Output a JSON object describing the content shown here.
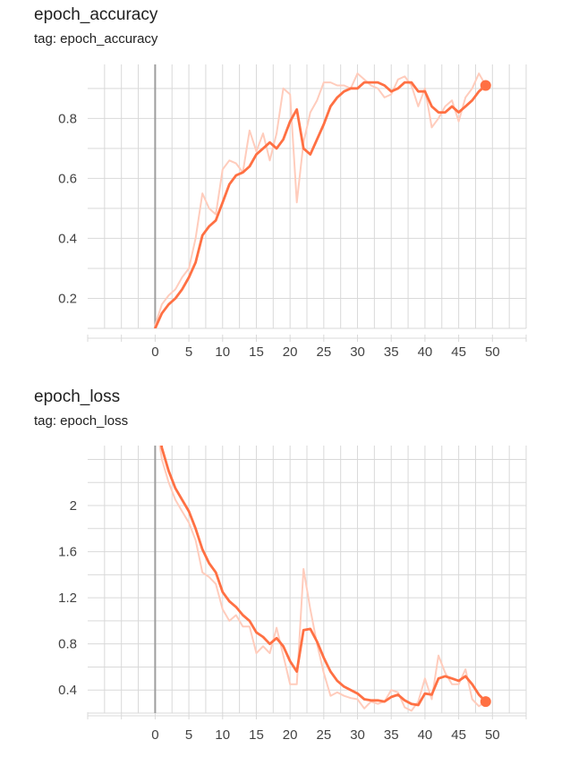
{
  "charts": [
    {
      "title": "epoch_accuracy",
      "tag": "tag: epoch_accuracy"
    },
    {
      "title": "epoch_loss",
      "tag": "tag: epoch_loss"
    }
  ],
  "colors": {
    "smoothed": "#ff7043",
    "raw": "#ffccbc",
    "grid": "#d9d9d9",
    "zero_axis": "#9e9e9e"
  },
  "chart_data": [
    {
      "type": "line",
      "title": "epoch_accuracy",
      "subtitle": "tag: epoch_accuracy",
      "xlabel": "",
      "ylabel": "",
      "xlim": [
        -10,
        55
      ],
      "ylim": [
        0.1,
        0.98
      ],
      "x_ticks": [
        "0",
        "5",
        "10",
        "15",
        "20",
        "25",
        "30",
        "35",
        "40",
        "45",
        "50"
      ],
      "y_ticks": [
        "0.2",
        "0.4",
        "0.6",
        "0.8"
      ],
      "grid": true,
      "series": [
        {
          "role": "raw",
          "x": [
            0,
            1,
            2,
            3,
            4,
            5,
            6,
            7,
            8,
            9,
            10,
            11,
            12,
            13,
            14,
            15,
            16,
            17,
            18,
            19,
            20,
            21,
            22,
            23,
            24,
            25,
            26,
            27,
            28,
            29,
            30,
            31,
            32,
            33,
            34,
            35,
            36,
            37,
            38,
            39,
            40,
            41,
            42,
            43,
            44,
            45,
            46,
            47,
            48,
            49
          ],
          "y": [
            0.11,
            0.18,
            0.21,
            0.23,
            0.27,
            0.3,
            0.4,
            0.55,
            0.5,
            0.48,
            0.63,
            0.66,
            0.65,
            0.62,
            0.76,
            0.69,
            0.75,
            0.66,
            0.75,
            0.9,
            0.88,
            0.52,
            0.72,
            0.82,
            0.86,
            0.92,
            0.92,
            0.91,
            0.91,
            0.9,
            0.95,
            0.93,
            0.91,
            0.9,
            0.87,
            0.88,
            0.93,
            0.94,
            0.91,
            0.84,
            0.9,
            0.77,
            0.8,
            0.84,
            0.86,
            0.79,
            0.87,
            0.9,
            0.95,
            0.91
          ]
        },
        {
          "role": "smoothed",
          "x": [
            0,
            1,
            2,
            3,
            4,
            5,
            6,
            7,
            8,
            9,
            10,
            11,
            12,
            13,
            14,
            15,
            16,
            17,
            18,
            19,
            20,
            21,
            22,
            23,
            24,
            25,
            26,
            27,
            28,
            29,
            30,
            31,
            32,
            33,
            34,
            35,
            36,
            37,
            38,
            39,
            40,
            41,
            42,
            43,
            44,
            45,
            46,
            47,
            48,
            49
          ],
          "y": [
            0.1,
            0.15,
            0.18,
            0.2,
            0.23,
            0.27,
            0.32,
            0.41,
            0.44,
            0.46,
            0.52,
            0.58,
            0.61,
            0.62,
            0.64,
            0.68,
            0.7,
            0.72,
            0.7,
            0.73,
            0.79,
            0.83,
            0.7,
            0.68,
            0.73,
            0.78,
            0.84,
            0.87,
            0.89,
            0.9,
            0.9,
            0.92,
            0.92,
            0.92,
            0.91,
            0.89,
            0.9,
            0.92,
            0.92,
            0.89,
            0.89,
            0.84,
            0.82,
            0.82,
            0.84,
            0.82,
            0.84,
            0.86,
            0.89,
            0.91
          ]
        }
      ]
    },
    {
      "type": "line",
      "title": "epoch_loss",
      "subtitle": "tag: epoch_loss",
      "xlabel": "",
      "ylabel": "",
      "xlim": [
        -10,
        55
      ],
      "ylim": [
        0.2,
        2.52
      ],
      "x_ticks": [
        "0",
        "5",
        "10",
        "15",
        "20",
        "25",
        "30",
        "35",
        "40",
        "45",
        "50"
      ],
      "y_ticks": [
        "0.4",
        "0.8",
        "1.2",
        "1.6",
        "2"
      ],
      "grid": true,
      "series": [
        {
          "role": "raw",
          "x": [
            0,
            1,
            2,
            3,
            4,
            5,
            6,
            7,
            8,
            9,
            10,
            11,
            12,
            13,
            14,
            15,
            16,
            17,
            18,
            19,
            20,
            21,
            22,
            23,
            24,
            25,
            26,
            27,
            28,
            29,
            30,
            31,
            32,
            33,
            34,
            35,
            36,
            37,
            38,
            39,
            40,
            41,
            42,
            43,
            44,
            45,
            46,
            47,
            48,
            49
          ],
          "y": [
            2.8,
            2.4,
            2.2,
            2.05,
            1.95,
            1.85,
            1.7,
            1.42,
            1.38,
            1.32,
            1.1,
            1.0,
            1.05,
            0.95,
            0.95,
            0.72,
            0.78,
            0.72,
            0.94,
            0.7,
            0.45,
            0.45,
            1.45,
            1.1,
            0.8,
            0.55,
            0.35,
            0.38,
            0.35,
            0.33,
            0.32,
            0.24,
            0.3,
            0.28,
            0.3,
            0.4,
            0.38,
            0.25,
            0.22,
            0.3,
            0.5,
            0.32,
            0.7,
            0.55,
            0.45,
            0.45,
            0.58,
            0.32,
            0.26,
            0.3
          ]
        },
        {
          "role": "smoothed",
          "x": [
            0,
            1,
            2,
            3,
            4,
            5,
            6,
            7,
            8,
            9,
            10,
            11,
            12,
            13,
            14,
            15,
            16,
            17,
            18,
            19,
            20,
            21,
            22,
            23,
            24,
            25,
            26,
            27,
            28,
            29,
            30,
            31,
            32,
            33,
            34,
            35,
            36,
            37,
            38,
            39,
            40,
            41,
            42,
            43,
            44,
            45,
            46,
            47,
            48,
            49
          ],
          "y": [
            2.9,
            2.5,
            2.3,
            2.15,
            2.05,
            1.95,
            1.8,
            1.62,
            1.5,
            1.42,
            1.25,
            1.17,
            1.12,
            1.05,
            1.0,
            0.9,
            0.86,
            0.8,
            0.85,
            0.78,
            0.65,
            0.56,
            0.92,
            0.93,
            0.82,
            0.68,
            0.56,
            0.48,
            0.43,
            0.4,
            0.37,
            0.32,
            0.31,
            0.31,
            0.3,
            0.34,
            0.36,
            0.31,
            0.28,
            0.27,
            0.37,
            0.36,
            0.5,
            0.52,
            0.5,
            0.48,
            0.52,
            0.45,
            0.36,
            0.3
          ]
        }
      ]
    }
  ]
}
